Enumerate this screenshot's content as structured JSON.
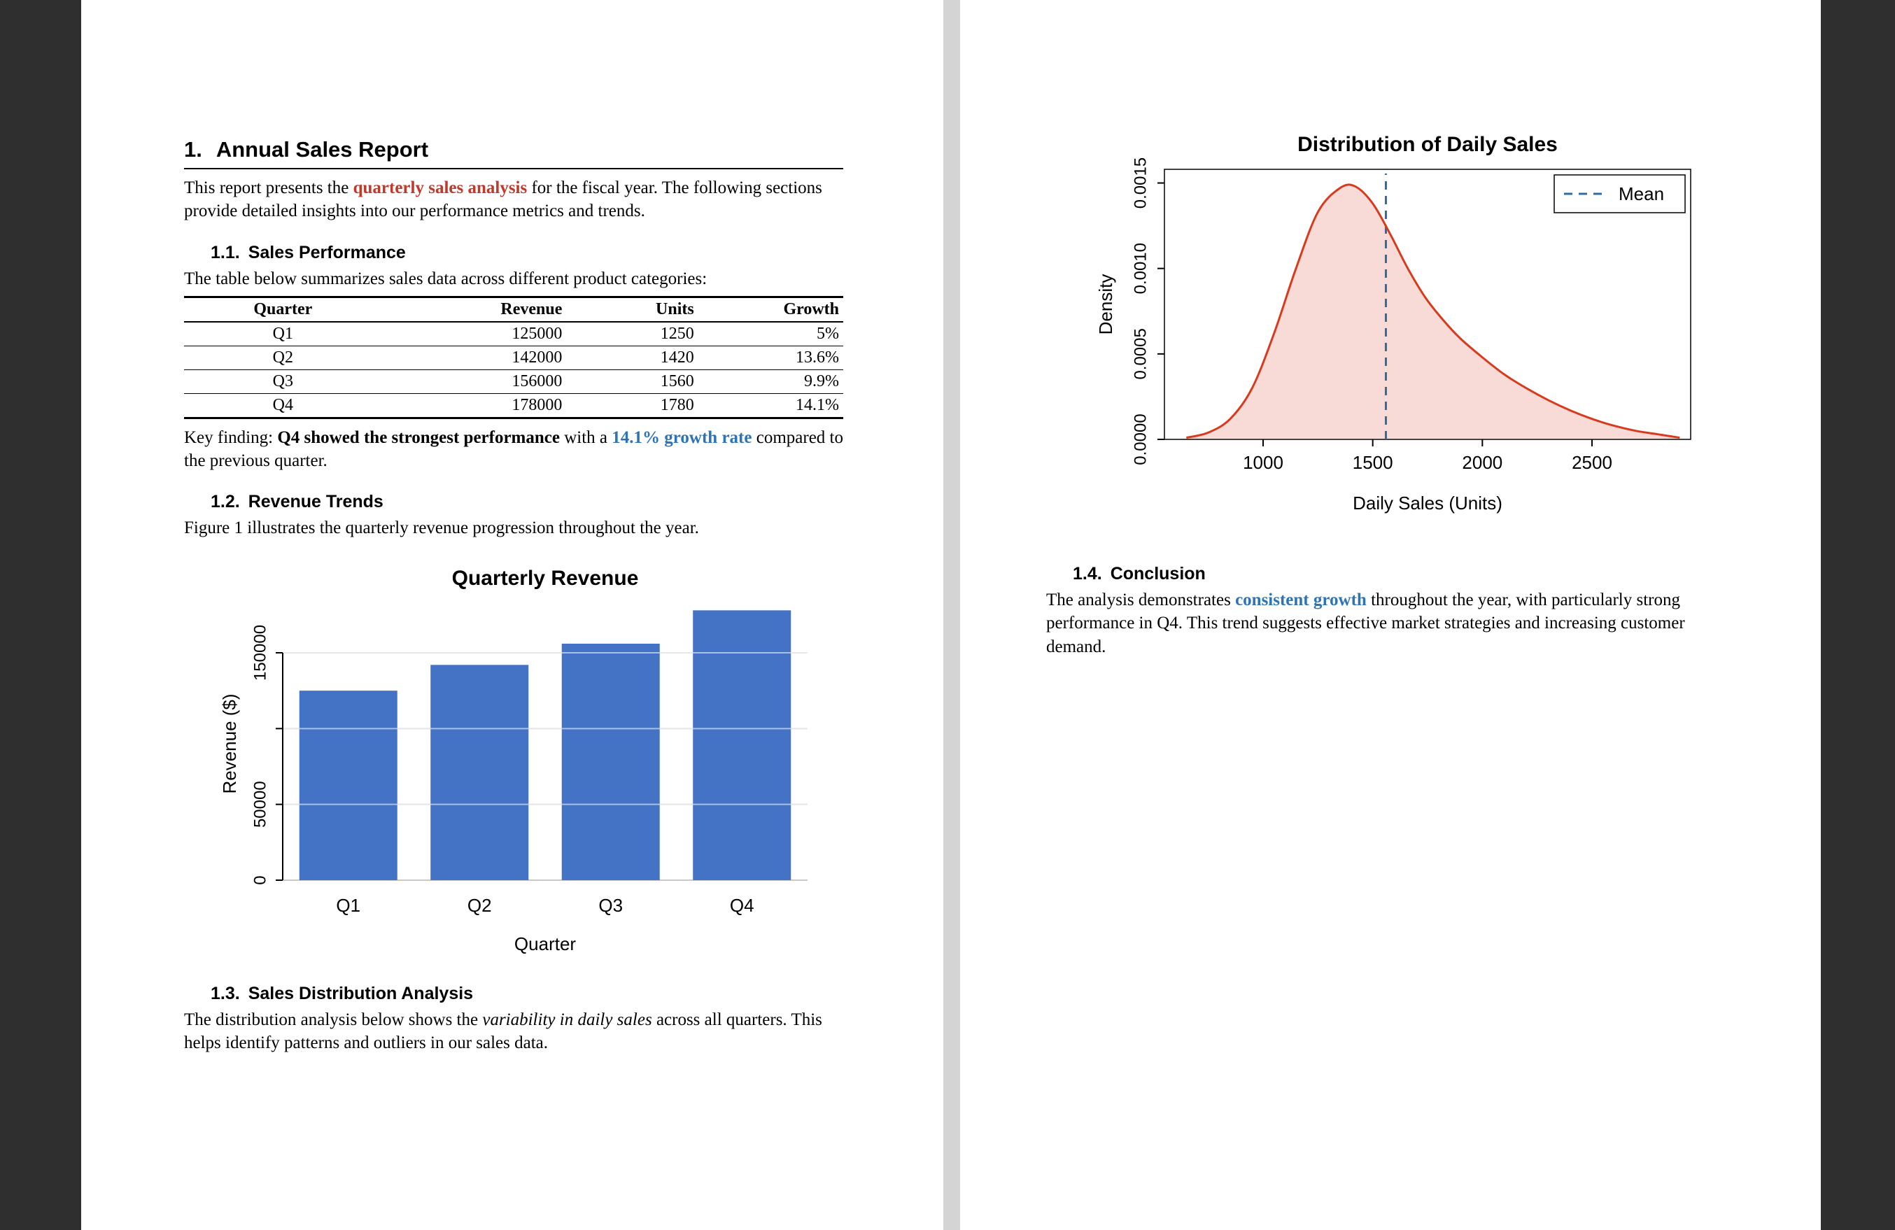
{
  "colors": {
    "backdrop": "#2f2f2f",
    "page": "#ffffff",
    "accent_red": "#c0392b",
    "accent_blue": "#2e74b5",
    "bar_blue": "#4472c4",
    "density_red": "#d83a1e",
    "mean_blue": "#2e6da4"
  },
  "doc": {
    "h1": {
      "number": "1.",
      "text": "Annual Sales Report"
    },
    "intro": {
      "p1": "This report presents the ",
      "highlight": "quarterly sales analysis",
      "p2": " for the fiscal year. The following sections provide detailed insights into our performance metrics and trends."
    },
    "s11": {
      "number": "1.1.",
      "title": "Sales Performance",
      "body": "The table below summarizes sales data across different product categories:"
    },
    "table": {
      "headers": [
        "Quarter",
        "Revenue",
        "Units",
        "Growth"
      ],
      "rows": [
        [
          "Q1",
          "125000",
          "1250",
          "5%"
        ],
        [
          "Q2",
          "142000",
          "1420",
          "13.6%"
        ],
        [
          "Q3",
          "156000",
          "1560",
          "9.9%"
        ],
        [
          "Q4",
          "178000",
          "1780",
          "14.1%"
        ]
      ]
    },
    "key_finding": {
      "p1": "Key finding: ",
      "b1": "Q4 showed the strongest performance",
      "p2": " with a ",
      "b2": "14.1% growth rate",
      "p3": " compared to the previous quarter."
    },
    "s12": {
      "number": "1.2.",
      "title": "Revenue Trends",
      "body": "Figure 1 illustrates the quarterly revenue progression throughout the year."
    },
    "s13": {
      "number": "1.3.",
      "title": "Sales Distribution Analysis",
      "body_p1": "The distribution analysis below shows the ",
      "body_i": "variability in daily sales",
      "body_p2": " across all quarters. This helps identify patterns and outliers in our sales data."
    },
    "s14": {
      "number": "1.4.",
      "title": "Conclusion",
      "body_p1": "The analysis demonstrates ",
      "body_b": "consistent growth",
      "body_p2": " throughout the year, with particularly strong performance in Q4. This trend suggests effective market strategies and increasing customer demand."
    }
  },
  "chart_data": [
    {
      "type": "bar",
      "title": "Quarterly Revenue",
      "categories": [
        "Q1",
        "Q2",
        "Q3",
        "Q4"
      ],
      "values": [
        125000,
        142000,
        156000,
        178000
      ],
      "xlabel": "Quarter",
      "ylabel": "Revenue ($)",
      "ylim": [
        0,
        180000
      ],
      "yticks": [
        0,
        50000,
        100000,
        150000
      ],
      "ytick_labels": [
        "0",
        "50000",
        "",
        "150000"
      ],
      "bar_color": "#4472c4",
      "grid": true,
      "legend": null
    },
    {
      "type": "density",
      "title": "Distribution of Daily Sales",
      "xlabel": "Daily Sales (Units)",
      "ylabel": "Density",
      "xlim": [
        550,
        2950
      ],
      "ylim": [
        0,
        0.00158
      ],
      "xticks": [
        1000,
        1500,
        2000,
        2500
      ],
      "yticks": [
        0,
        0.0005,
        0.001,
        0.0015
      ],
      "ytick_labels": [
        "0.0000",
        "0.0005",
        "0.0010",
        "0.0015"
      ],
      "points": [
        [
          650,
          1e-05
        ],
        [
          750,
          4e-05
        ],
        [
          850,
          0.00012
        ],
        [
          950,
          0.0003
        ],
        [
          1050,
          0.00062
        ],
        [
          1150,
          0.001
        ],
        [
          1250,
          0.00133
        ],
        [
          1350,
          0.00147
        ],
        [
          1420,
          0.00148
        ],
        [
          1500,
          0.00138
        ],
        [
          1580,
          0.0012
        ],
        [
          1660,
          0.001
        ],
        [
          1740,
          0.00083
        ],
        [
          1820,
          0.0007
        ],
        [
          1900,
          0.00059
        ],
        [
          2000,
          0.00048
        ],
        [
          2100,
          0.00038
        ],
        [
          2200,
          0.0003
        ],
        [
          2300,
          0.00023
        ],
        [
          2400,
          0.00017
        ],
        [
          2500,
          0.00012
        ],
        [
          2600,
          8e-05
        ],
        [
          2700,
          5e-05
        ],
        [
          2800,
          3e-05
        ],
        [
          2900,
          1e-05
        ]
      ],
      "mean": 1560,
      "legend": {
        "label": "Mean"
      },
      "line_color": "#d83a1e",
      "fill_color": "rgba(216,58,30,0.18)",
      "mean_color": "#2e6da4",
      "grid": false
    }
  ]
}
